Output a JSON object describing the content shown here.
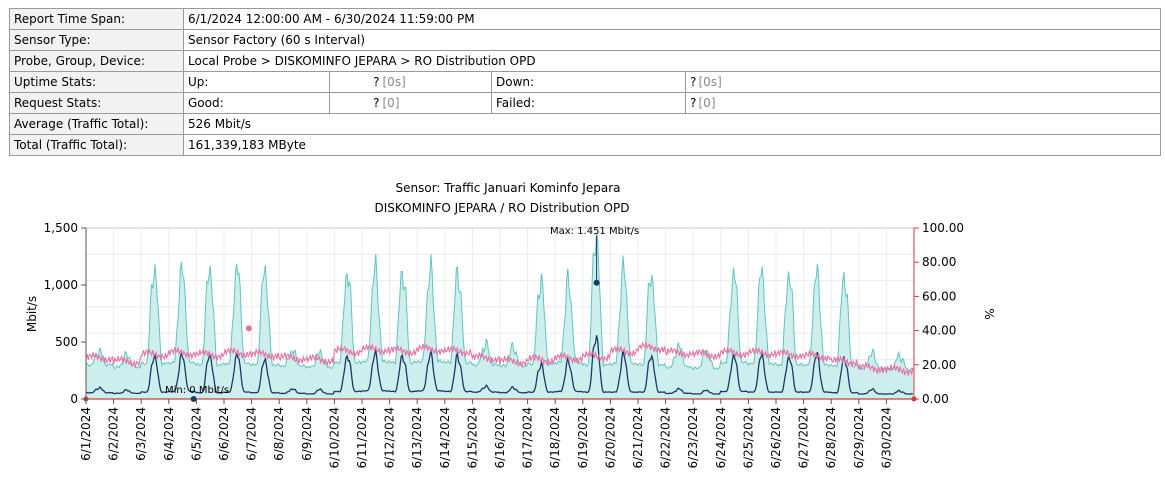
{
  "report": {
    "time_span": {
      "label": "Report Time Span:",
      "value": "6/1/2024 12:00:00 AM - 6/30/2024 11:59:00 PM"
    },
    "sensor_type": {
      "label": "Sensor Type:",
      "value": "Sensor Factory (60 s Interval)"
    },
    "probe": {
      "label": "Probe, Group, Device:",
      "value": "Local Probe > DISKOMINFO JEPARA > RO Distribution OPD"
    },
    "uptime": {
      "label": "Uptime Stats:",
      "up_label": "Up:",
      "up_value": "?",
      "up_time": "[0s]",
      "down_label": "Down:",
      "down_value": "?",
      "down_time": "[0s]"
    },
    "request": {
      "label": "Request Stats:",
      "good_label": "Good:",
      "good_value": "?",
      "good_count": "[0]",
      "failed_label": "Failed:",
      "failed_value": "?",
      "failed_count": "[0]"
    },
    "average": {
      "label": "Average (Traffic Total):",
      "value": "526 Mbit/s"
    },
    "total": {
      "label": "Total (Traffic Total):",
      "value": "161,339,183 MByte"
    }
  },
  "chart_data": {
    "type": "area",
    "title": "Sensor: Traffic Januari Kominfo Jepara",
    "subtitle": "DISKOMINFO JEPARA / RO Distribution OPD",
    "ylabel": "Mbit/s",
    "y2label": "%",
    "ylim": [
      0,
      1500
    ],
    "y2lim": [
      0,
      100
    ],
    "yticks": [
      "0",
      "500",
      "1,000",
      "1,500"
    ],
    "y2ticks": [
      "0.00",
      "20.00",
      "40.00",
      "60.00",
      "80.00",
      "100.00"
    ],
    "grid": true,
    "x": [
      "6/1/2024",
      "6/2/2024",
      "6/3/2024",
      "6/4/2024",
      "6/5/2024",
      "6/6/2024",
      "6/7/2024",
      "6/8/2024",
      "6/9/2024",
      "6/10/2024",
      "6/11/2024",
      "6/12/2024",
      "6/13/2024",
      "6/14/2024",
      "6/15/2024",
      "6/16/2024",
      "6/17/2024",
      "6/18/2024",
      "6/19/2024",
      "6/20/2024",
      "6/21/2024",
      "6/22/2024",
      "6/23/2024",
      "6/24/2024",
      "6/25/2024",
      "6/26/2024",
      "6/27/2024",
      "6/28/2024",
      "6/29/2024",
      "6/30/2024"
    ],
    "series": [
      {
        "role": "total",
        "color": "#5ec4bf",
        "fill": "#cdeeed",
        "daily_peak": [
          420,
          380,
          1150,
          1130,
          1150,
          1150,
          1130,
          420,
          400,
          1120,
          1140,
          1120,
          1130,
          1110,
          480,
          450,
          1050,
          1020,
          1451,
          1130,
          1100,
          460,
          420,
          1110,
          1110,
          1100,
          1100,
          1080,
          400,
          380
        ],
        "daily_base": [
          300,
          280,
          310,
          320,
          300,
          310,
          300,
          290,
          280,
          320,
          330,
          320,
          330,
          320,
          300,
          290,
          310,
          320,
          300,
          310,
          300,
          280,
          270,
          320,
          310,
          300,
          300,
          290,
          270,
          260
        ]
      },
      {
        "role": "volume",
        "color": "#1a3a66",
        "daily_peak": [
          180,
          140,
          700,
          690,
          710,
          700,
          620,
          160,
          150,
          700,
          710,
          700,
          710,
          690,
          200,
          180,
          560,
          590,
          1020,
          700,
          700,
          160,
          140,
          690,
          690,
          680,
          700,
          660,
          150,
          130
        ],
        "daily_base": [
          100,
          90,
          110,
          120,
          100,
          110,
          100,
          90,
          80,
          120,
          130,
          120,
          130,
          120,
          110,
          100,
          110,
          120,
          110,
          110,
          110,
          90,
          80,
          120,
          110,
          110,
          110,
          100,
          80,
          80
        ]
      },
      {
        "role": "percent",
        "color": "#e86fa6",
        "axis": "right",
        "daily": [
          24,
          22,
          26,
          27,
          26,
          27,
          26,
          24,
          23,
          28,
          29,
          28,
          29,
          28,
          24,
          22,
          23,
          24,
          25,
          28,
          30,
          27,
          26,
          27,
          27,
          26,
          25,
          22,
          18,
          17
        ]
      }
    ],
    "annotations": [
      {
        "text": "Max: 1.451 Mbit/s",
        "x_day": 18.5,
        "y": 1451,
        "marker_y": 1020,
        "marker_color": "#1a3a66"
      },
      {
        "text": "Min: 0 Mbit/s",
        "x_day": 3.9,
        "y": 0,
        "marker_color": "#1a3a66"
      },
      {
        "x_day": 5.9,
        "y": 620,
        "marker_color": "#e86fa6"
      }
    ]
  }
}
